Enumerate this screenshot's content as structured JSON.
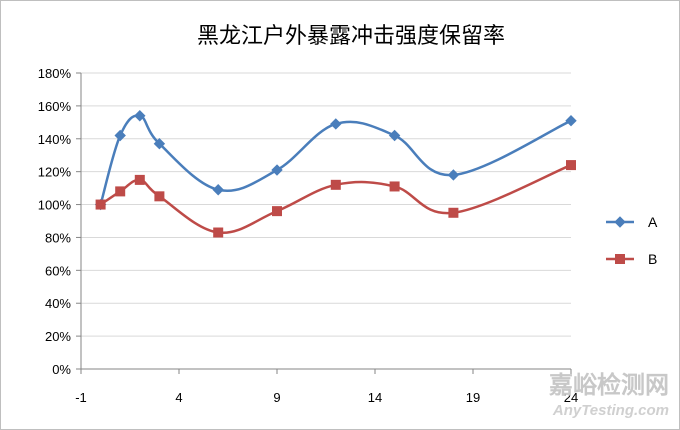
{
  "chart_data": {
    "type": "line",
    "title": "黑龙江户外暴露冲击强度保留率",
    "xlabel": "",
    "ylabel": "",
    "xlim": [
      -1,
      24
    ],
    "ylim": [
      0,
      1.8
    ],
    "x_ticks": [
      -1,
      4,
      9,
      14,
      19,
      24
    ],
    "y_ticks": [
      0,
      0.2,
      0.4,
      0.6,
      0.8,
      1.0,
      1.2,
      1.4,
      1.6,
      1.8
    ],
    "y_tick_labels": [
      "0%",
      "20%",
      "40%",
      "60%",
      "80%",
      "100%",
      "120%",
      "140%",
      "160%",
      "180%"
    ],
    "grid": "horizontal",
    "legend_position": "right",
    "smooth": true,
    "series": [
      {
        "name": "A",
        "color": "#4a7ebb",
        "marker": "diamond",
        "x": [
          0,
          1,
          2,
          3,
          6,
          9,
          12,
          15,
          18,
          24
        ],
        "y": [
          1.0,
          1.42,
          1.54,
          1.37,
          1.09,
          1.21,
          1.49,
          1.42,
          1.18,
          1.51
        ]
      },
      {
        "name": "B",
        "color": "#be4b48",
        "marker": "square",
        "x": [
          0,
          1,
          2,
          3,
          6,
          9,
          12,
          15,
          18,
          24
        ],
        "y": [
          1.0,
          1.08,
          1.15,
          1.05,
          0.83,
          0.96,
          1.12,
          1.11,
          0.95,
          1.24
        ]
      }
    ]
  },
  "watermark": {
    "text_cn": "嘉峪检测网",
    "text_en": "AnyTesting.com"
  }
}
